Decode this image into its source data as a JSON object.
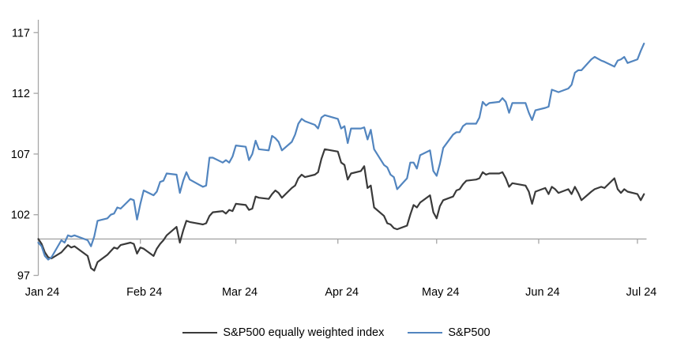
{
  "chart_data": {
    "type": "line",
    "title": "",
    "xlabel": "",
    "ylabel": "",
    "grid": false,
    "legend_position": "bottom",
    "x_axis": {
      "tick_labels": [
        "Jan 24",
        "Feb 24",
        "Mar 24",
        "Apr 24",
        "May 24",
        "Jun 24",
        "Jul 24"
      ],
      "tick_dates": [
        "01-01",
        "02-01",
        "03-01",
        "04-01",
        "05-01",
        "06-01",
        "07-01"
      ],
      "baseline_value": 100,
      "range_dates": [
        "01-01",
        "07-03"
      ]
    },
    "y_axis": {
      "ticks": [
        97,
        102,
        107,
        112,
        117
      ],
      "min": 97,
      "max": 118
    },
    "dates": [
      "01-01",
      "01-02",
      "01-03",
      "01-04",
      "01-05",
      "01-08",
      "01-09",
      "01-10",
      "01-11",
      "01-12",
      "01-16",
      "01-17",
      "01-18",
      "01-19",
      "01-22",
      "01-23",
      "01-24",
      "01-25",
      "01-26",
      "01-29",
      "01-30",
      "01-31",
      "02-01",
      "02-02",
      "02-05",
      "02-06",
      "02-07",
      "02-08",
      "02-09",
      "02-12",
      "02-13",
      "02-14",
      "02-15",
      "02-16",
      "02-20",
      "02-21",
      "02-22",
      "02-23",
      "02-26",
      "02-27",
      "02-28",
      "02-29",
      "03-01",
      "03-04",
      "03-05",
      "03-06",
      "03-07",
      "03-08",
      "03-11",
      "03-12",
      "03-13",
      "03-14",
      "03-15",
      "03-18",
      "03-19",
      "03-20",
      "03-21",
      "03-22",
      "03-25",
      "03-26",
      "03-27",
      "03-28",
      "04-01",
      "04-02",
      "04-03",
      "04-04",
      "04-05",
      "04-08",
      "04-09",
      "04-10",
      "04-11",
      "04-12",
      "04-15",
      "04-16",
      "04-17",
      "04-18",
      "04-19",
      "04-22",
      "04-23",
      "04-24",
      "04-25",
      "04-26",
      "04-29",
      "04-30",
      "05-01",
      "05-02",
      "05-03",
      "05-06",
      "05-07",
      "05-08",
      "05-09",
      "05-10",
      "05-13",
      "05-14",
      "05-15",
      "05-16",
      "05-17",
      "05-20",
      "05-21",
      "05-22",
      "05-23",
      "05-24",
      "05-28",
      "05-29",
      "05-30",
      "05-31",
      "06-03",
      "06-04",
      "06-05",
      "06-06",
      "06-07",
      "06-10",
      "06-11",
      "06-12",
      "06-13",
      "06-14",
      "06-17",
      "06-18",
      "06-20",
      "06-21",
      "06-24",
      "06-25",
      "06-26",
      "06-27",
      "06-28",
      "07-01",
      "07-02",
      "07-03"
    ],
    "series": [
      {
        "name": "S&P500 equally weighted index",
        "color": "#3a3a3a",
        "values": [
          100.0,
          99.6,
          98.9,
          98.5,
          98.4,
          98.9,
          99.2,
          99.5,
          99.3,
          99.4,
          98.6,
          97.6,
          97.4,
          98.1,
          98.7,
          99.0,
          99.3,
          99.2,
          99.5,
          99.7,
          99.6,
          98.8,
          99.3,
          99.2,
          98.6,
          99.2,
          99.6,
          99.9,
          100.3,
          101.0,
          99.7,
          100.7,
          101.5,
          101.4,
          101.2,
          101.3,
          101.9,
          102.2,
          102.3,
          102.1,
          102.4,
          102.3,
          102.9,
          102.8,
          102.4,
          102.5,
          103.5,
          103.4,
          103.3,
          103.7,
          104.0,
          103.8,
          103.4,
          104.2,
          104.4,
          105.0,
          105.3,
          105.1,
          105.3,
          105.5,
          106.6,
          107.4,
          107.2,
          106.3,
          106.1,
          104.9,
          105.4,
          105.6,
          106.0,
          104.2,
          104.4,
          102.6,
          101.9,
          101.3,
          101.2,
          100.9,
          100.8,
          101.1,
          102.0,
          102.8,
          102.6,
          103.0,
          103.6,
          102.2,
          101.7,
          102.7,
          103.2,
          103.5,
          104.0,
          104.1,
          104.5,
          104.8,
          104.9,
          105.0,
          105.5,
          105.3,
          105.4,
          105.4,
          105.5,
          105.0,
          104.3,
          104.6,
          104.4,
          103.9,
          102.9,
          103.9,
          104.2,
          103.7,
          104.3,
          104.1,
          103.8,
          104.1,
          103.7,
          104.3,
          103.8,
          103.2,
          103.9,
          104.1,
          104.3,
          104.2,
          105.0,
          104.1,
          103.8,
          104.1,
          103.9,
          103.7,
          103.2,
          103.7
        ]
      },
      {
        "name": "S&P500",
        "color": "#5285bf",
        "values": [
          99.7,
          99.4,
          98.6,
          98.3,
          98.5,
          99.9,
          99.7,
          100.3,
          100.2,
          100.3,
          99.9,
          99.4,
          100.2,
          101.5,
          101.7,
          102.0,
          102.1,
          102.6,
          102.5,
          103.3,
          103.2,
          101.6,
          102.9,
          104.0,
          103.6,
          103.9,
          104.7,
          104.8,
          105.4,
          105.3,
          103.8,
          104.8,
          105.5,
          104.9,
          104.3,
          104.4,
          106.7,
          106.7,
          106.3,
          106.5,
          106.3,
          106.8,
          107.7,
          107.6,
          106.5,
          107.0,
          108.1,
          107.4,
          107.3,
          108.5,
          108.3,
          108.0,
          107.3,
          108.0,
          108.6,
          109.5,
          109.9,
          109.7,
          109.4,
          109.1,
          110.0,
          110.2,
          109.9,
          109.1,
          109.3,
          107.9,
          109.1,
          109.1,
          109.2,
          108.2,
          109.0,
          107.4,
          106.1,
          105.9,
          105.3,
          105.1,
          104.1,
          105.0,
          106.3,
          106.3,
          105.8,
          106.9,
          107.3,
          105.6,
          105.2,
          106.2,
          107.5,
          108.6,
          108.8,
          108.8,
          109.3,
          109.5,
          109.5,
          110.0,
          111.3,
          111.0,
          111.2,
          111.3,
          111.6,
          111.3,
          110.4,
          111.2,
          111.2,
          110.4,
          109.8,
          110.6,
          110.8,
          110.9,
          112.3,
          112.2,
          112.1,
          112.4,
          112.7,
          113.7,
          113.9,
          113.9,
          114.8,
          115.0,
          114.7,
          114.6,
          114.2,
          114.7,
          114.8,
          115.0,
          114.5,
          114.8,
          115.5,
          116.1
        ]
      }
    ]
  },
  "colors": {
    "axis": "#a6a6a6",
    "text": "#000000",
    "background": "#ffffff"
  }
}
